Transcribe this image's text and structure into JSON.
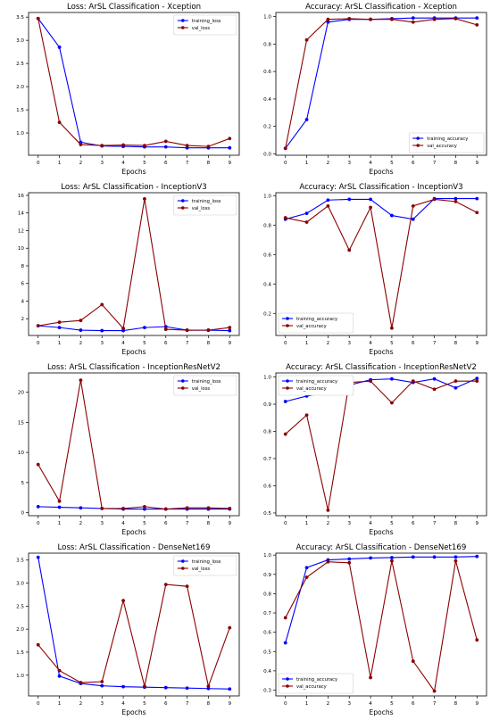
{
  "chart_data": [
    {
      "type": "line",
      "title": "Loss: ArSL Classification - Xception",
      "xlabel": "Epochs",
      "ylabel": "",
      "x": [
        0,
        1,
        2,
        3,
        4,
        5,
        6,
        7,
        8,
        9
      ],
      "xlim": [
        -0.45,
        9.45
      ],
      "ylim": [
        0.52,
        3.6
      ],
      "yticks": [
        1.0,
        1.5,
        2.0,
        2.5,
        3.0,
        3.5
      ],
      "legend": "top-right",
      "series": [
        {
          "name": "training_loss",
          "color": "#0000ff",
          "values": [
            3.47,
            2.85,
            0.8,
            0.72,
            0.71,
            0.7,
            0.7,
            0.68,
            0.68,
            0.68
          ]
        },
        {
          "name": "val_loss",
          "color": "#8b0000",
          "values": [
            3.47,
            1.23,
            0.75,
            0.73,
            0.74,
            0.73,
            0.82,
            0.73,
            0.71,
            0.88
          ]
        }
      ]
    },
    {
      "type": "line",
      "title": "Accuracy: ArSL Classification - Xception",
      "xlabel": "Epochs",
      "ylabel": "",
      "x": [
        0,
        1,
        2,
        3,
        4,
        5,
        6,
        7,
        8,
        9
      ],
      "xlim": [
        -0.45,
        9.45
      ],
      "ylim": [
        -0.01,
        1.03
      ],
      "yticks": [
        0.0,
        0.2,
        0.4,
        0.6,
        0.8,
        1.0
      ],
      "legend": "bottom-right",
      "series": [
        {
          "name": "training_accuracy",
          "color": "#0000ff",
          "values": [
            0.04,
            0.25,
            0.96,
            0.98,
            0.98,
            0.985,
            0.99,
            0.99,
            0.99,
            0.99
          ]
        },
        {
          "name": "val_accuracy",
          "color": "#8b0000",
          "values": [
            0.04,
            0.83,
            0.98,
            0.985,
            0.98,
            0.98,
            0.96,
            0.98,
            0.985,
            0.94
          ]
        }
      ]
    },
    {
      "type": "line",
      "title": "Loss: ArSL Classification - InceptionV3",
      "xlabel": "Epochs",
      "ylabel": "",
      "x": [
        0,
        1,
        2,
        3,
        4,
        5,
        6,
        7,
        8,
        9
      ],
      "xlim": [
        -0.45,
        9.45
      ],
      "ylim": [
        0.1,
        16.3
      ],
      "yticks": [
        2,
        4,
        6,
        8,
        10,
        12,
        14,
        16
      ],
      "legend": "top-right",
      "series": [
        {
          "name": "training_loss",
          "color": "#0000ff",
          "values": [
            1.2,
            1.0,
            0.7,
            0.65,
            0.65,
            1.0,
            1.1,
            0.7,
            0.7,
            0.65
          ]
        },
        {
          "name": "val_loss",
          "color": "#8b0000",
          "values": [
            1.2,
            1.6,
            1.8,
            3.6,
            0.9,
            15.6,
            0.8,
            0.7,
            0.7,
            1.0
          ]
        }
      ]
    },
    {
      "type": "line",
      "title": "Accuracy: ArSL Classification - InceptionV3",
      "xlabel": "Epochs",
      "ylabel": "",
      "x": [
        0,
        1,
        2,
        3,
        4,
        5,
        6,
        7,
        8,
        9
      ],
      "xlim": [
        -0.45,
        9.45
      ],
      "ylim": [
        0.05,
        1.02
      ],
      "yticks": [
        0.2,
        0.4,
        0.6,
        0.8,
        1.0
      ],
      "legend": "bottom-left",
      "series": [
        {
          "name": "training_accuracy",
          "color": "#0000ff",
          "values": [
            0.84,
            0.88,
            0.97,
            0.975,
            0.975,
            0.865,
            0.84,
            0.98,
            0.98,
            0.98
          ]
        },
        {
          "name": "val_accuracy",
          "color": "#8b0000",
          "values": [
            0.85,
            0.82,
            0.93,
            0.63,
            0.92,
            0.1,
            0.93,
            0.975,
            0.96,
            0.885
          ]
        }
      ]
    },
    {
      "type": "line",
      "title": "Loss: ArSL Classification - InceptionResNetV2",
      "xlabel": "Epochs",
      "ylabel": "",
      "x": [
        0,
        1,
        2,
        3,
        4,
        5,
        6,
        7,
        8,
        9
      ],
      "xlim": [
        -0.45,
        9.45
      ],
      "ylim": [
        -0.5,
        23.2
      ],
      "yticks": [
        0,
        5,
        10,
        15,
        20
      ],
      "legend": "top-right",
      "series": [
        {
          "name": "training_loss",
          "color": "#0000ff",
          "values": [
            1.0,
            0.9,
            0.8,
            0.7,
            0.6,
            0.6,
            0.6,
            0.6,
            0.6,
            0.6
          ]
        },
        {
          "name": "val_loss",
          "color": "#8b0000",
          "values": [
            8.0,
            1.9,
            22.0,
            0.7,
            0.7,
            1.0,
            0.6,
            0.8,
            0.8,
            0.7
          ]
        }
      ]
    },
    {
      "type": "line",
      "title": "Accuracy: ArSL Classification - InceptionResNetV2",
      "xlabel": "Epochs",
      "ylabel": "",
      "x": [
        0,
        1,
        2,
        3,
        4,
        5,
        6,
        7,
        8,
        9
      ],
      "xlim": [
        -0.45,
        9.45
      ],
      "ylim": [
        0.49,
        1.015
      ],
      "yticks": [
        0.5,
        0.6,
        0.7,
        0.8,
        0.9,
        1.0
      ],
      "legend": "top-left",
      "series": [
        {
          "name": "training_accuracy",
          "color": "#0000ff",
          "values": [
            0.91,
            0.93,
            0.945,
            0.97,
            0.99,
            0.993,
            0.98,
            0.993,
            0.96,
            0.995
          ]
        },
        {
          "name": "val_accuracy",
          "color": "#8b0000",
          "values": [
            0.79,
            0.86,
            0.51,
            0.98,
            0.985,
            0.905,
            0.985,
            0.955,
            0.985,
            0.985
          ]
        }
      ]
    },
    {
      "type": "line",
      "title": "Loss: ArSL Classification - DenseNet169",
      "xlabel": "Epochs",
      "ylabel": "",
      "x": [
        0,
        1,
        2,
        3,
        4,
        5,
        6,
        7,
        8,
        9
      ],
      "xlim": [
        -0.45,
        9.45
      ],
      "ylim": [
        0.55,
        3.65
      ],
      "yticks": [
        1.0,
        1.5,
        2.0,
        2.5,
        3.0,
        3.5
      ],
      "legend": "top-right",
      "series": [
        {
          "name": "training_loss",
          "color": "#0000ff",
          "values": [
            3.56,
            0.98,
            0.82,
            0.77,
            0.75,
            0.74,
            0.73,
            0.72,
            0.71,
            0.7
          ]
        },
        {
          "name": "val_loss",
          "color": "#8b0000",
          "values": [
            1.66,
            1.1,
            0.84,
            0.86,
            2.62,
            0.76,
            2.97,
            2.93,
            0.76,
            2.03
          ]
        }
      ]
    },
    {
      "type": "line",
      "title": "Accuracy: ArSL Classification - DenseNet169",
      "xlabel": "Epochs",
      "ylabel": "",
      "x": [
        0,
        1,
        2,
        3,
        4,
        5,
        6,
        7,
        8,
        9
      ],
      "xlim": [
        -0.45,
        9.45
      ],
      "ylim": [
        0.27,
        1.01
      ],
      "yticks": [
        0.3,
        0.4,
        0.5,
        0.6,
        0.7,
        0.8,
        0.9,
        1.0
      ],
      "legend": "bottom-left",
      "series": [
        {
          "name": "training_accuracy",
          "color": "#0000ff",
          "values": [
            0.545,
            0.935,
            0.975,
            0.98,
            0.985,
            0.987,
            0.99,
            0.99,
            0.99,
            0.993
          ]
        },
        {
          "name": "val_accuracy",
          "color": "#8b0000",
          "values": [
            0.675,
            0.885,
            0.965,
            0.96,
            0.365,
            0.97,
            0.45,
            0.295,
            0.97,
            0.56
          ]
        }
      ]
    }
  ]
}
